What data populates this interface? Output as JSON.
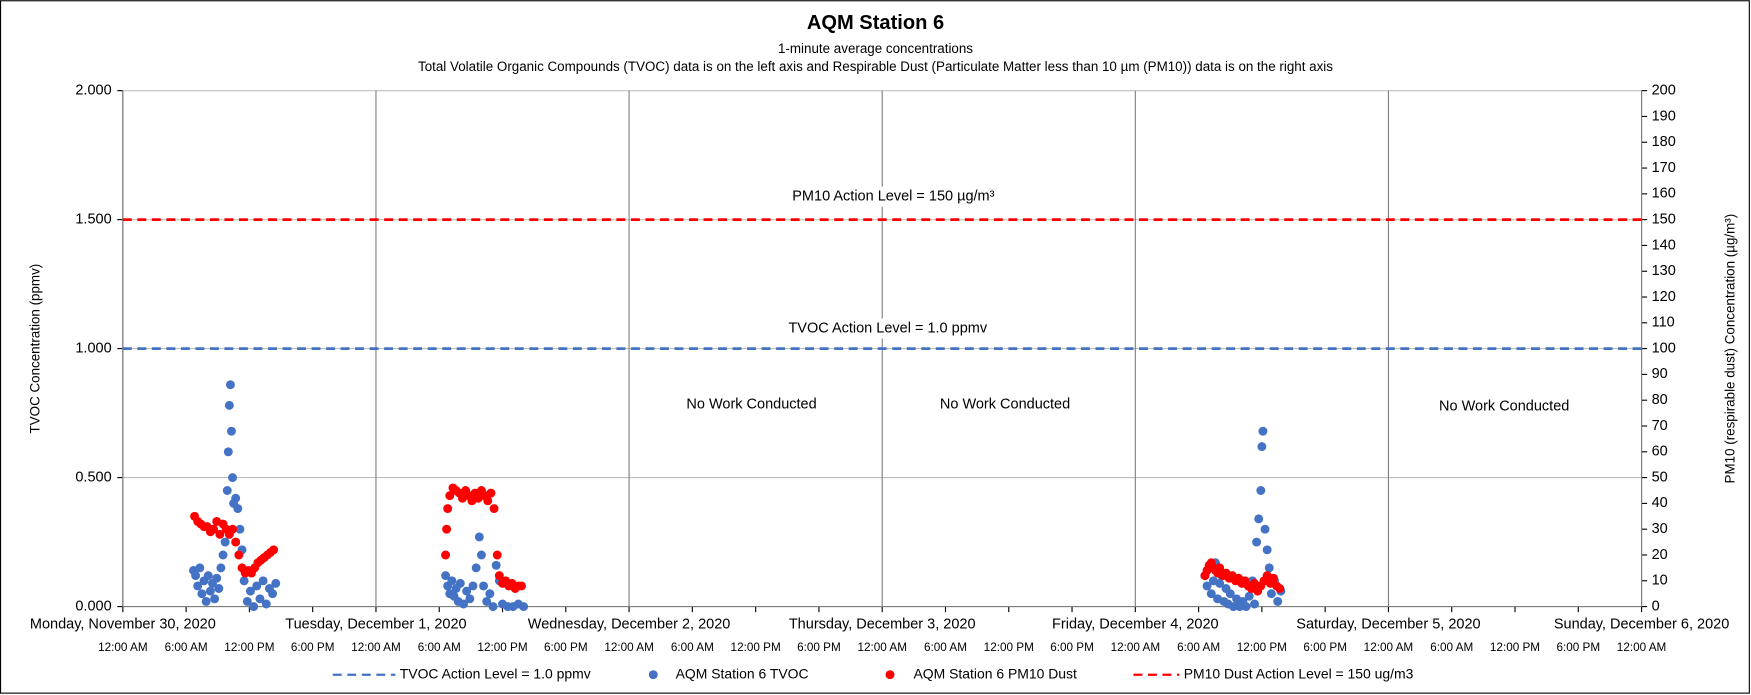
{
  "chart_data": {
    "type": "scatter",
    "title": "AQM Station 6",
    "subtitle": "1-minute average concentrations",
    "description": "Total Volatile Organic Compounds (TVOC) data is on the left axis and Respirable Dust (Particulate Matter less than 10 µm (PM10)) data is on the right axis",
    "ylabel": "TVOC Concentration (ppmv)",
    "y2label": "PM10 (respirable dust) Concentration (µg/m³)",
    "annotations": [
      "PM10 Action Level = 150 µg/m³",
      "TVOC Action Level = 1.0 ppmv",
      "No Work Conducted",
      "No Work Conducted",
      "No Work Conducted"
    ],
    "xlim": [
      0,
      144
    ],
    "xticks": [
      {
        "value": 0,
        "label": "12:00 AM"
      },
      {
        "value": 6,
        "label": "6:00 AM"
      },
      {
        "value": 12,
        "label": "12:00 PM"
      },
      {
        "value": 18,
        "label": "6:00 PM"
      },
      {
        "value": 24,
        "label": "12:00 AM"
      },
      {
        "value": 30,
        "label": "6:00 AM"
      },
      {
        "value": 36,
        "label": "12:00 PM"
      },
      {
        "value": 42,
        "label": "6:00 PM"
      },
      {
        "value": 48,
        "label": "12:00 AM"
      },
      {
        "value": 54,
        "label": "6:00 AM"
      },
      {
        "value": 60,
        "label": "12:00 PM"
      },
      {
        "value": 66,
        "label": "6:00 PM"
      },
      {
        "value": 72,
        "label": "12:00 AM"
      },
      {
        "value": 78,
        "label": "6:00 AM"
      },
      {
        "value": 84,
        "label": "12:00 PM"
      },
      {
        "value": 90,
        "label": "6:00 PM"
      },
      {
        "value": 96,
        "label": "12:00 AM"
      },
      {
        "value": 102,
        "label": "6:00 AM"
      },
      {
        "value": 108,
        "label": "12:00 PM"
      },
      {
        "value": 114,
        "label": "6:00 PM"
      },
      {
        "value": 120,
        "label": "12:00 AM"
      },
      {
        "value": 126,
        "label": "6:00 AM"
      },
      {
        "value": 132,
        "label": "12:00 PM"
      },
      {
        "value": 138,
        "label": "6:00 PM"
      },
      {
        "value": 144,
        "label": "12:00 AM"
      }
    ],
    "xdayticks": [
      {
        "value": 0,
        "label": "Monday, November 30, 2020"
      },
      {
        "value": 24,
        "label": "Tuesday, December 1, 2020"
      },
      {
        "value": 48,
        "label": "Wednesday, December 2, 2020"
      },
      {
        "value": 72,
        "label": "Thursday, December 3, 2020"
      },
      {
        "value": 96,
        "label": "Friday, December 4, 2020"
      },
      {
        "value": 120,
        "label": "Saturday, December 5, 2020"
      },
      {
        "value": 144,
        "label": "Sunday, December 6, 2020"
      }
    ],
    "ylim": [
      0,
      2
    ],
    "yticks": [
      {
        "value": 0,
        "label": "0.000"
      },
      {
        "value": 0.5,
        "label": "0.500"
      },
      {
        "value": 1,
        "label": "1.000"
      },
      {
        "value": 1.5,
        "label": "1.500"
      },
      {
        "value": 2,
        "label": "2.000"
      }
    ],
    "y2lim": [
      0,
      200
    ],
    "y2ticks": [
      0,
      10,
      20,
      30,
      40,
      50,
      60,
      70,
      80,
      90,
      100,
      110,
      120,
      130,
      140,
      150,
      160,
      170,
      180,
      190,
      200
    ],
    "grid": true,
    "legend": "bottom",
    "series": [
      {
        "name": "TVOC Action Level = 1.0 ppmv",
        "type": "line",
        "dashed": true,
        "color": "#4472c4",
        "x": [
          0,
          144
        ],
        "values": [
          1,
          1
        ]
      },
      {
        "name": "AQM Station 6 TVOC",
        "type": "scatter",
        "color": "#4472c4",
        "x": [
          6.7,
          6.9,
          7.1,
          7.3,
          7.5,
          7.7,
          7.9,
          8.1,
          8.3,
          8.5,
          8.7,
          8.9,
          9.1,
          9.3,
          9.5,
          9.7,
          9.9,
          10.0,
          10.1,
          10.2,
          10.3,
          10.4,
          10.5,
          10.7,
          10.9,
          11.1,
          11.3,
          11.5,
          11.8,
          12.1,
          12.4,
          12.7,
          13.0,
          13.3,
          13.6,
          13.9,
          14.2,
          14.5,
          30.6,
          30.8,
          31.0,
          31.2,
          31.4,
          31.6,
          31.8,
          32.0,
          32.3,
          32.6,
          32.9,
          33.2,
          33.5,
          33.8,
          34.0,
          34.2,
          34.5,
          34.8,
          35.1,
          35.4,
          35.7,
          36.0,
          36.5,
          37.0,
          37.5,
          38.0,
          102.6,
          102.8,
          103.0,
          103.2,
          103.4,
          103.6,
          103.8,
          104.0,
          104.2,
          104.4,
          104.6,
          104.8,
          105.0,
          105.3,
          105.6,
          105.9,
          106.2,
          106.5,
          106.8,
          107.1,
          107.3,
          107.5,
          107.7,
          107.9,
          108.0,
          108.1,
          108.3,
          108.5,
          108.7,
          108.9,
          109.2,
          109.5,
          109.8
        ],
        "values": [
          0.14,
          0.12,
          0.08,
          0.15,
          0.05,
          0.1,
          0.02,
          0.12,
          0.06,
          0.09,
          0.03,
          0.11,
          0.07,
          0.15,
          0.2,
          0.25,
          0.45,
          0.6,
          0.78,
          0.86,
          0.68,
          0.5,
          0.4,
          0.42,
          0.38,
          0.3,
          0.22,
          0.1,
          0.02,
          0.06,
          0.0,
          0.08,
          0.03,
          0.1,
          0.01,
          0.07,
          0.05,
          0.09,
          0.12,
          0.08,
          0.05,
          0.1,
          0.04,
          0.07,
          0.02,
          0.09,
          0.01,
          0.06,
          0.03,
          0.08,
          0.15,
          0.27,
          0.2,
          0.08,
          0.02,
          0.05,
          0.0,
          0.16,
          0.1,
          0.01,
          0.0,
          0.0,
          0.01,
          0.0,
          0.12,
          0.08,
          0.15,
          0.05,
          0.1,
          0.17,
          0.03,
          0.09,
          0.12,
          0.02,
          0.07,
          0.01,
          0.05,
          0.0,
          0.03,
          0.0,
          0.02,
          0.0,
          0.04,
          0.1,
          0.01,
          0.25,
          0.34,
          0.45,
          0.62,
          0.68,
          0.3,
          0.22,
          0.15,
          0.05,
          0.1,
          0.02,
          0.06
        ]
      },
      {
        "name": "AQM Station 6 PM10 Dust",
        "type": "scatter",
        "axis": "y2",
        "color": "#ff0000",
        "x": [
          6.8,
          7.1,
          7.4,
          7.7,
          8.0,
          8.3,
          8.6,
          8.9,
          9.2,
          9.5,
          9.8,
          10.1,
          10.4,
          10.7,
          11.0,
          11.3,
          11.6,
          11.9,
          12.2,
          12.5,
          12.8,
          13.1,
          13.4,
          13.7,
          14.0,
          14.3,
          30.6,
          30.7,
          30.8,
          31.0,
          31.3,
          31.6,
          31.9,
          32.2,
          32.5,
          32.8,
          33.1,
          33.4,
          33.7,
          34.0,
          34.3,
          34.6,
          34.9,
          35.2,
          35.5,
          35.7,
          36.0,
          36.3,
          36.6,
          36.9,
          37.2,
          37.5,
          37.8,
          102.6,
          102.8,
          103.0,
          103.2,
          103.4,
          103.6,
          103.8,
          104.0,
          104.3,
          104.6,
          104.9,
          105.2,
          105.5,
          105.8,
          106.1,
          106.4,
          106.7,
          107.0,
          107.3,
          107.6,
          107.9,
          108.2,
          108.5,
          108.8,
          109.1,
          109.4,
          109.7
        ],
        "values": [
          35,
          33,
          32,
          31,
          31,
          29,
          30,
          33,
          28,
          32,
          30,
          28,
          30,
          25,
          20,
          15,
          13,
          14,
          13,
          15,
          17,
          18,
          19,
          20,
          21,
          22,
          20,
          30,
          38,
          43,
          46,
          45,
          44,
          42,
          45,
          43,
          41,
          44,
          42,
          45,
          43,
          41,
          44,
          38,
          20,
          12,
          9,
          10,
          8,
          9,
          7,
          8,
          8,
          12,
          14,
          16,
          17,
          15,
          14,
          13,
          15,
          12,
          13,
          11,
          12,
          10,
          11,
          9,
          10,
          8,
          7,
          9,
          6,
          8,
          10,
          12,
          9,
          11,
          8,
          7
        ]
      },
      {
        "name": "PM10 Dust Action Level = 150 ug/m3",
        "type": "line",
        "dashed": true,
        "axis": "y2",
        "color": "#ff0000",
        "x": [
          0,
          144
        ],
        "values": [
          150,
          150
        ]
      }
    ]
  }
}
